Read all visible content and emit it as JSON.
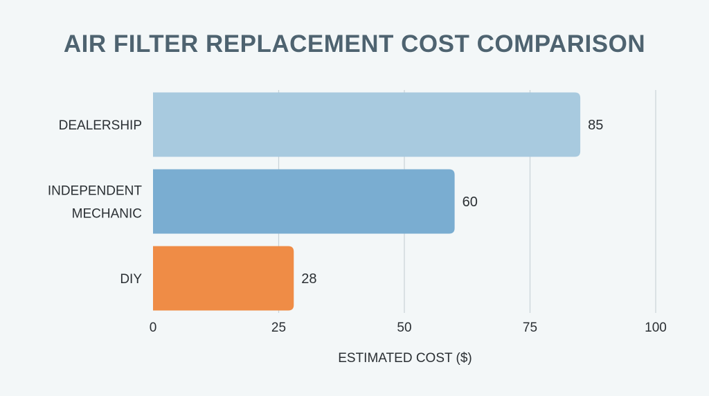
{
  "chart_data": {
    "type": "bar",
    "orientation": "horizontal",
    "title": "AIR FILTER REPLACEMENT COST COMPARISON",
    "xlabel": "ESTIMATED COST ($)",
    "ylabel": "",
    "xlim": [
      0,
      100
    ],
    "xticks": [
      0,
      25,
      50,
      75,
      100
    ],
    "grid": true,
    "categories": [
      {
        "lines": [
          "DEALERSHIP"
        ],
        "value": 85,
        "value_label": "85",
        "color": "#a8cadf"
      },
      {
        "lines": [
          "INDEPENDENT",
          "MECHANIC"
        ],
        "value": 60,
        "value_label": "60",
        "color": "#7aadd1"
      },
      {
        "lines": [
          "DIY"
        ],
        "value": 28,
        "value_label": "28",
        "color": "#ef8c46"
      }
    ]
  }
}
